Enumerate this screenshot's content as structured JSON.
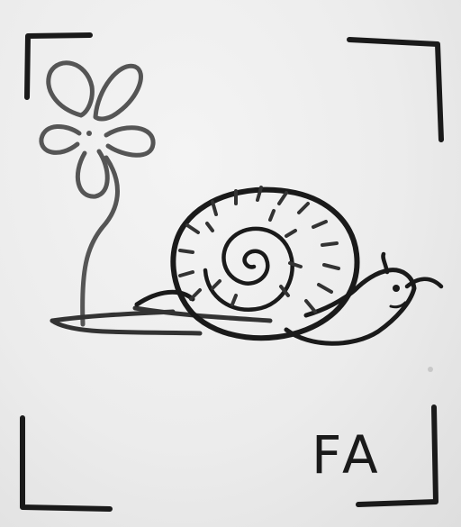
{
  "artwork": {
    "subject_icons": [
      "flower-icon",
      "snail-icon",
      "frame-corner-icon"
    ],
    "initials": "FA",
    "colors": {
      "paper": "#ececec",
      "ink_dark": "#1a1a1a",
      "ink_gray": "#555555"
    }
  }
}
